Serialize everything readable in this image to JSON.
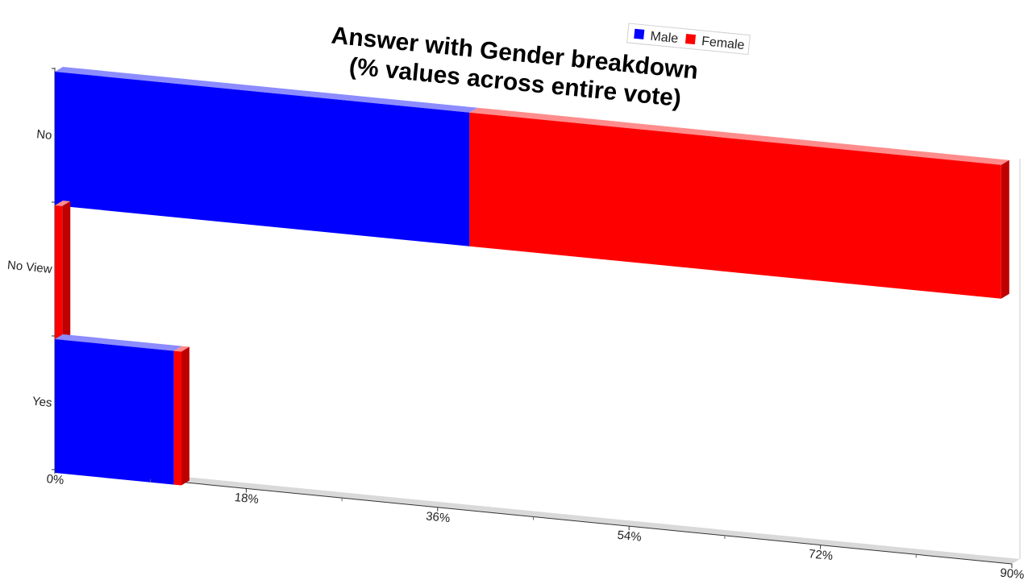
{
  "chart_data": {
    "type": "bar",
    "orientation": "horizontal",
    "stacked": true,
    "three_d": true,
    "title": "Answer with Gender breakdown\n(% values across entire vote)",
    "categories": [
      "No",
      "No View",
      "Yes"
    ],
    "series": [
      {
        "name": "Male",
        "color": "#0000ff",
        "values": [
          39,
          0,
          11.2
        ]
      },
      {
        "name": "Female",
        "color": "#ff0000",
        "values": [
          50,
          0.7,
          0.7
        ]
      }
    ],
    "x_ticks": [
      "0%",
      "18%",
      "36%",
      "54%",
      "72%",
      "90%"
    ],
    "xlim": [
      0,
      90
    ],
    "legend": "top-right",
    "grid": false
  }
}
